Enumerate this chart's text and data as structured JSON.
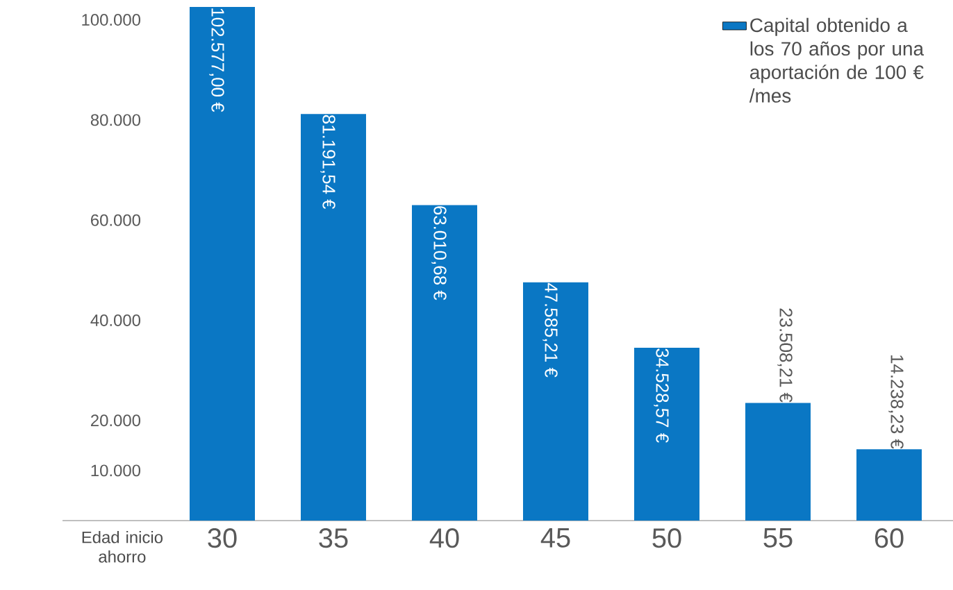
{
  "chart_data": {
    "type": "bar",
    "categories": [
      "30",
      "35",
      "40",
      "45",
      "50",
      "55",
      "60"
    ],
    "series": [
      {
        "name": "Capital obtenido a los 70 años por una aportación de 100 € /mes",
        "color": "#0a77c4",
        "values": [
          102577.0,
          81191.54,
          63010.68,
          47585.21,
          34528.57,
          23508.21,
          14238.23
        ],
        "value_labels": [
          "102.577,00 €",
          "81.191,54 €",
          "63.010,68 €",
          "47.585,21 €",
          "34.528,57 €",
          "23.508,21 €",
          "14.238,23 €"
        ]
      }
    ],
    "xlabel": "Edad inicio ahorro",
    "ylim": [
      0,
      102577
    ],
    "yticks": [
      {
        "value": 10000,
        "label": "10.000"
      },
      {
        "value": 20000,
        "label": "20.000"
      },
      {
        "value": 40000,
        "label": "40.000"
      },
      {
        "value": 60000,
        "label": "60.000"
      },
      {
        "value": 80000,
        "label": "80.000"
      },
      {
        "value": 100000,
        "label": "100.000"
      }
    ],
    "legend": "top right",
    "grid": false
  }
}
